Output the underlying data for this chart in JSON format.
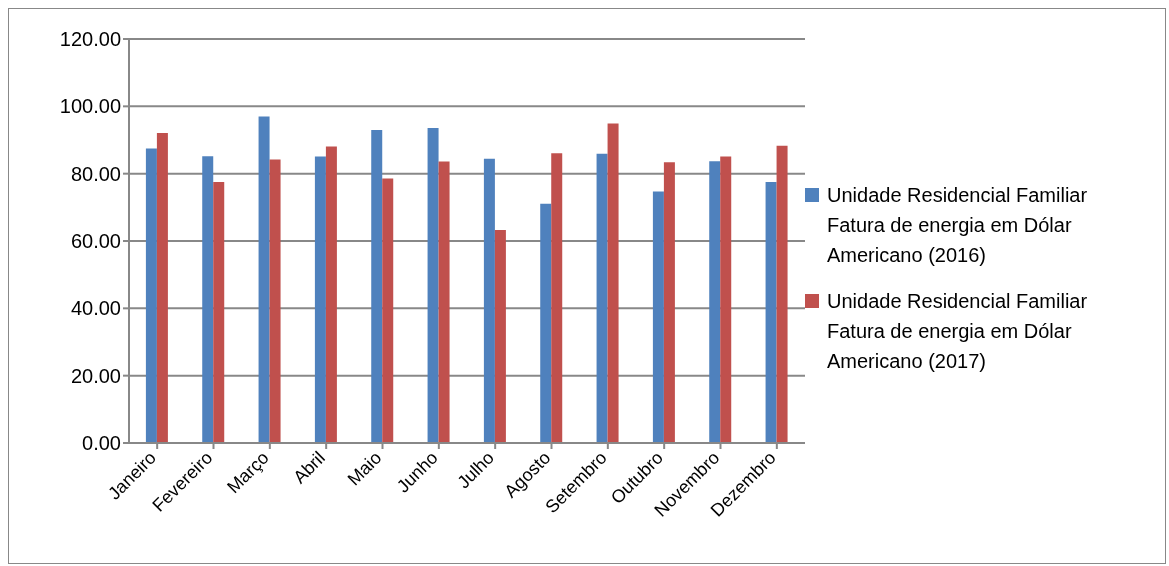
{
  "chart_data": {
    "type": "bar",
    "categories": [
      "Janeiro",
      "Fevereiro",
      "Março",
      "Abril",
      "Maio",
      "Junho",
      "Julho",
      "Agosto",
      "Setembro",
      "Outubro",
      "Novembro",
      "Dezembro"
    ],
    "series": [
      {
        "name": "Unidade Residencial Familiar Fatura de energia em Dólar Americano (2016)",
        "color": "#4f81bd",
        "values": [
          87.5,
          85.2,
          97.0,
          85.1,
          93.0,
          93.6,
          84.4,
          71.1,
          85.9,
          74.7,
          83.7,
          77.5
        ]
      },
      {
        "name": "Unidade Residencial Familiar Fatura de energia em Dólar Americano (2017)",
        "color": "#c0504d",
        "values": [
          92.1,
          77.5,
          84.2,
          88.1,
          78.6,
          83.6,
          63.3,
          86.1,
          94.9,
          83.4,
          85.1,
          88.3
        ]
      }
    ],
    "ylim": [
      0,
      120
    ],
    "yticks": [
      {
        "value": 0,
        "label": "0.00"
      },
      {
        "value": 20,
        "label": "20.00"
      },
      {
        "value": 40,
        "label": "40.00"
      },
      {
        "value": 60,
        "label": "60.00"
      },
      {
        "value": 80,
        "label": "80.00"
      },
      {
        "value": 100,
        "label": "100.00"
      },
      {
        "value": 120,
        "label": "120.00"
      }
    ],
    "grid": "y",
    "legend": "right"
  }
}
